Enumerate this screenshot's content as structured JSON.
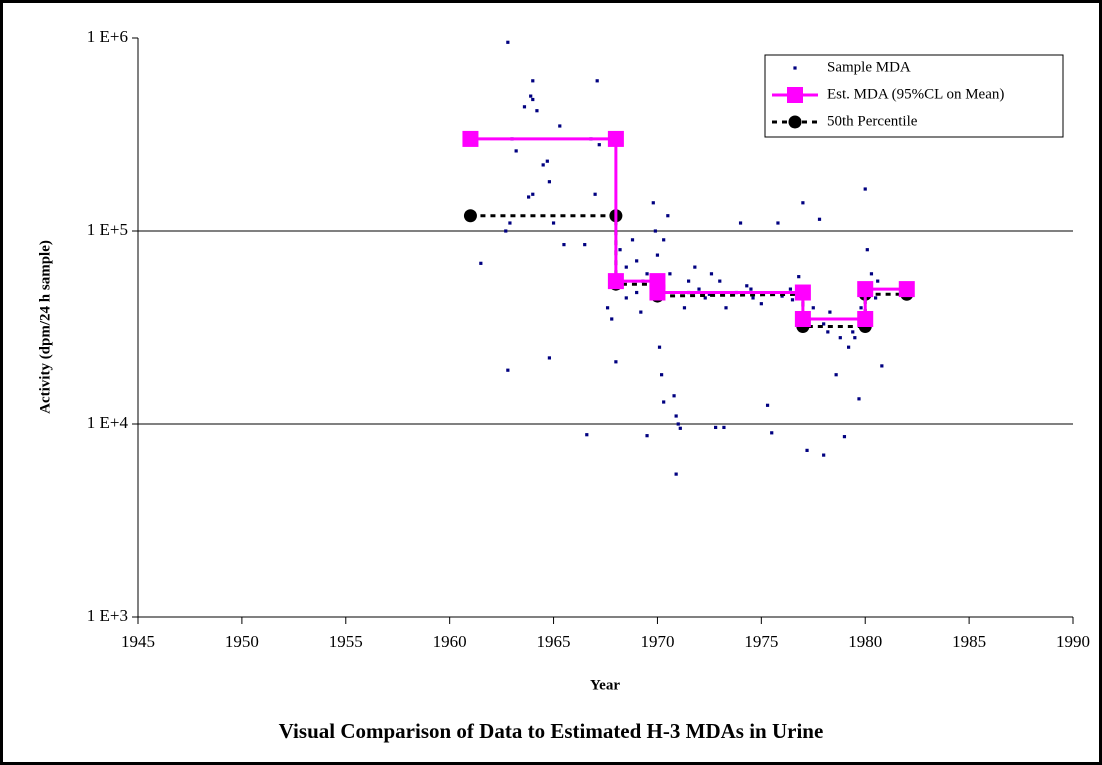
{
  "chart_data": {
    "type": "scatter",
    "title": "Visual Comparison of Data to Estimated H-3 MDAs in Urine",
    "xlabel": "Year",
    "ylabel": "Activity (dpm/24 h sample)",
    "xlim": [
      1945,
      1990
    ],
    "xticks": [
      1945,
      1950,
      1955,
      1960,
      1965,
      1970,
      1975,
      1980,
      1985,
      1990
    ],
    "ylim": [
      1000,
      1000000
    ],
    "log_y": true,
    "grid": true,
    "legend": "top right",
    "yticks": [
      {
        "value": 1000,
        "label": "1 E+3"
      },
      {
        "value": 10000,
        "label": "1 E+4"
      },
      {
        "value": 100000,
        "label": "1 E+5"
      },
      {
        "value": 1000000,
        "label": "1 E+6"
      }
    ],
    "series": [
      {
        "name": "Sample MDA",
        "kind": "points",
        "color": "#000080",
        "x": [
          1962.8,
          1963.0,
          1963.2,
          1963.6,
          1963.9,
          1964.0,
          1964.0,
          1964.2,
          1964.5,
          1964.7,
          1963.8,
          1964.0,
          1964.8,
          1965.0,
          1965.3,
          1962.7,
          1962.9,
          1961.5,
          1962.8,
          1964.8,
          1965.5,
          1966.5,
          1966.8,
          1967.1,
          1967.0,
          1967.2,
          1966.6,
          1967.6,
          1967.8,
          1968.0,
          1968.2,
          1968.5,
          1968.8,
          1969.0,
          1969.3,
          1969.5,
          1969.8,
          1969.9,
          1970.0,
          1970.1,
          1970.2,
          1970.3,
          1970.5,
          1970.6,
          1970.8,
          1970.9,
          1971.0,
          1971.1,
          1970.9,
          1970.3,
          1969.5,
          1971.3,
          1971.5,
          1971.8,
          1972.0,
          1972.3,
          1972.6,
          1973.0,
          1973.3,
          1973.8,
          1974.0,
          1974.3,
          1974.6,
          1975.0,
          1975.3,
          1975.5,
          1975.8,
          1976.0,
          1976.4,
          1976.8,
          1977.0,
          1977.2,
          1977.5,
          1977.8,
          1978.0,
          1978.0,
          1978.3,
          1978.6,
          1978.8,
          1979.0,
          1979.2,
          1979.4,
          1979.7,
          1979.8,
          1980.0,
          1980.1,
          1980.3,
          1980.6,
          1980.8,
          1972.8,
          1973.2,
          1970.0,
          1969.0,
          1971.5,
          1972.5,
          1974.5,
          1976.5,
          1968.5,
          1969.2,
          1979.5,
          1978.2,
          1980.5
        ],
        "values": [
          950000,
          300000,
          260000,
          440000,
          500000,
          480000,
          600000,
          420000,
          220000,
          230000,
          150000,
          155000,
          180000,
          110000,
          350000,
          100000,
          110000,
          68000,
          19000,
          22000,
          85000,
          85000,
          300000,
          600000,
          155000,
          280000,
          8800,
          40000,
          35000,
          21000,
          80000,
          65000,
          90000,
          70000,
          55000,
          60000,
          140000,
          100000,
          75000,
          25000,
          18000,
          90000,
          120000,
          60000,
          14000,
          11000,
          10000,
          9500,
          5500,
          13000,
          8700,
          40000,
          55000,
          65000,
          50000,
          45000,
          60000,
          55000,
          40000,
          48000,
          110000,
          52000,
          45000,
          42000,
          12500,
          9000,
          110000,
          46000,
          50000,
          58000,
          140000,
          7300,
          40000,
          115000,
          6900,
          33000,
          38000,
          18000,
          28000,
          8600,
          25000,
          30000,
          13500,
          40000,
          165000,
          80000,
          60000,
          55000,
          20000,
          9600,
          9600,
          50000,
          48000,
          48000,
          47000,
          50000,
          44000,
          45000,
          38000,
          28000,
          30000,
          45000
        ]
      },
      {
        "name": "Est. MDA (95%CL on Mean)",
        "kind": "line",
        "color": "#ff00ff",
        "marker": "square",
        "x": [
          1961,
          1968,
          1968,
          1970,
          1970,
          1977,
          1977,
          1980,
          1980,
          1982
        ],
        "values": [
          300000,
          300000,
          55000,
          55000,
          48000,
          48000,
          35000,
          35000,
          50000,
          50000
        ]
      },
      {
        "name": "50th Percentile",
        "kind": "line",
        "color": "#000000",
        "marker": "circle",
        "dashed": true,
        "x": [
          1961,
          1968,
          1968,
          1970,
          1970,
          1977,
          1977,
          1980,
          1980,
          1982
        ],
        "values": [
          120000,
          120000,
          53000,
          53000,
          46000,
          47000,
          32000,
          32000,
          47000,
          47000
        ]
      }
    ]
  }
}
